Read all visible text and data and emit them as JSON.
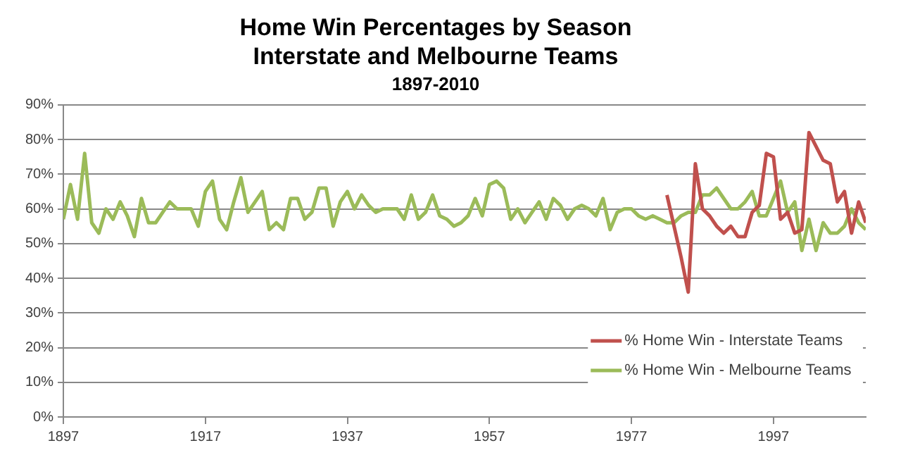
{
  "chart_data": {
    "type": "line",
    "title": "Home Win Percentages by Season\nInterstate and Melbourne Teams",
    "subtitle": "1897-2010",
    "xlim": [
      1897,
      2010
    ],
    "xticks": [
      1897,
      1917,
      1937,
      1957,
      1977,
      1997
    ],
    "ylim": [
      0,
      90
    ],
    "yticks": [
      {
        "value": 0,
        "label": "0%"
      },
      {
        "value": 10,
        "label": "10%"
      },
      {
        "value": 20,
        "label": "20%"
      },
      {
        "value": 30,
        "label": "30%"
      },
      {
        "value": 40,
        "label": "40%"
      },
      {
        "value": 50,
        "label": "50%"
      },
      {
        "value": 60,
        "label": "60%"
      },
      {
        "value": 70,
        "label": "70%"
      },
      {
        "value": 80,
        "label": "80%"
      },
      {
        "value": 90,
        "label": "90%"
      }
    ],
    "grid": "y",
    "legend": "bottom right",
    "marker": "none",
    "line_style": "solid",
    "series": [
      {
        "name": "% Home Win - Interstate Teams",
        "color": "#c0504d",
        "x": [
          1982,
          1983,
          1984,
          1985,
          1986,
          1987,
          1988,
          1989,
          1990,
          1991,
          1992,
          1993,
          1994,
          1995,
          1996,
          1997,
          1998,
          1999,
          2000,
          2001,
          2002,
          2003,
          2004,
          2005,
          2006,
          2007,
          2008,
          2009,
          2010
        ],
        "values": [
          64,
          55,
          46,
          36,
          73,
          60,
          58,
          55,
          53,
          55,
          52,
          52,
          59,
          61,
          76,
          75,
          57,
          59,
          53,
          54,
          82,
          78,
          74,
          73,
          62,
          65,
          53,
          62,
          56
        ]
      },
      {
        "name": "% Home Win - Melbourne Teams",
        "color": "#9bbb59",
        "x": [
          1897,
          1898,
          1899,
          1900,
          1901,
          1902,
          1903,
          1904,
          1905,
          1906,
          1907,
          1908,
          1909,
          1910,
          1911,
          1912,
          1913,
          1914,
          1915,
          1916,
          1917,
          1918,
          1919,
          1920,
          1921,
          1922,
          1923,
          1924,
          1925,
          1926,
          1927,
          1928,
          1929,
          1930,
          1931,
          1932,
          1933,
          1934,
          1935,
          1936,
          1937,
          1938,
          1939,
          1940,
          1941,
          1942,
          1943,
          1944,
          1945,
          1946,
          1947,
          1948,
          1949,
          1950,
          1951,
          1952,
          1953,
          1954,
          1955,
          1956,
          1957,
          1958,
          1959,
          1960,
          1961,
          1962,
          1963,
          1964,
          1965,
          1966,
          1967,
          1968,
          1969,
          1970,
          1971,
          1972,
          1973,
          1974,
          1975,
          1976,
          1977,
          1978,
          1979,
          1980,
          1981,
          1982,
          1983,
          1984,
          1985,
          1986,
          1987,
          1988,
          1989,
          1990,
          1991,
          1992,
          1993,
          1994,
          1995,
          1996,
          1997,
          1998,
          1999,
          2000,
          2001,
          2002,
          2003,
          2004,
          2005,
          2006,
          2007,
          2008,
          2009,
          2010
        ],
        "values": [
          57,
          67,
          57,
          76,
          56,
          53,
          60,
          57,
          62,
          58,
          52,
          63,
          56,
          56,
          59,
          62,
          60,
          60,
          60,
          55,
          65,
          68,
          57,
          54,
          62,
          69,
          59,
          62,
          65,
          54,
          56,
          54,
          63,
          63,
          57,
          59,
          66,
          66,
          55,
          62,
          65,
          60,
          64,
          61,
          59,
          60,
          60,
          60,
          57,
          64,
          57,
          59,
          64,
          58,
          57,
          55,
          56,
          58,
          63,
          58,
          67,
          68,
          66,
          57,
          60,
          56,
          59,
          62,
          57,
          63,
          61,
          57,
          60,
          61,
          60,
          58,
          63,
          54,
          59,
          60,
          60,
          58,
          57,
          58,
          57,
          56,
          56,
          58,
          59,
          59,
          64,
          64,
          66,
          63,
          60,
          60,
          62,
          65,
          58,
          58,
          63,
          68,
          59,
          62,
          48,
          57,
          48,
          56,
          53,
          53,
          55,
          60,
          56,
          54
        ]
      }
    ]
  }
}
